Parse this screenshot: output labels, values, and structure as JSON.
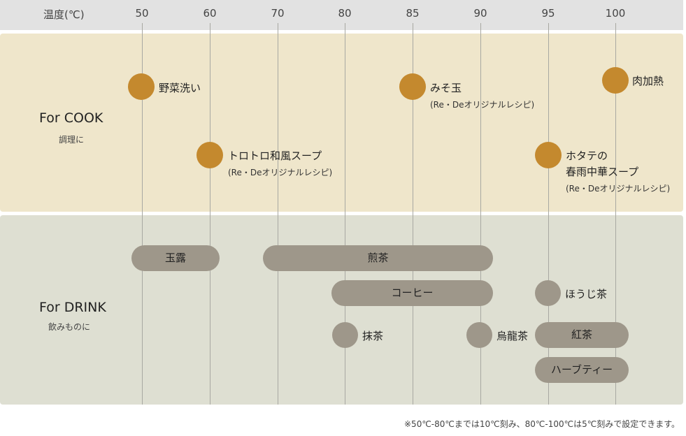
{
  "header": {
    "label": "温度(℃)",
    "ticks": [
      "50",
      "60",
      "70",
      "80",
      "85",
      "90",
      "95",
      "100"
    ]
  },
  "cook": {
    "title": "For COOK",
    "subtitle": "調理に",
    "items": [
      {
        "label": "野菜洗い"
      },
      {
        "label": "みそ玉",
        "note": "(Re・Deオリジナルレシピ)"
      },
      {
        "label": "肉加熱"
      },
      {
        "label": "トロトロ和風スープ",
        "note": "(Re・Deオリジナルレシピ)"
      },
      {
        "label": "ホタテの",
        "label2": "春雨中華スープ",
        "note": "(Re・Deオリジナルレシピ)"
      }
    ]
  },
  "drink": {
    "title": "For DRINK",
    "subtitle": "飲みものに",
    "items": [
      {
        "label": "玉露"
      },
      {
        "label": "煎茶"
      },
      {
        "label": "コーヒー"
      },
      {
        "label": "ほうじ茶"
      },
      {
        "label": "抹茶"
      },
      {
        "label": "烏龍茶"
      },
      {
        "label": "紅茶"
      },
      {
        "label": "ハーブティー"
      }
    ]
  },
  "footnote": "※50℃-80℃までは10℃刻み、80℃-100℃は5℃刻みで設定できます。",
  "colors": {
    "cook_dot": "#c4892e",
    "drink_bar": "#9e978a",
    "cook_bg": "#efe6cb",
    "drink_bg": "#dedfd2"
  }
}
